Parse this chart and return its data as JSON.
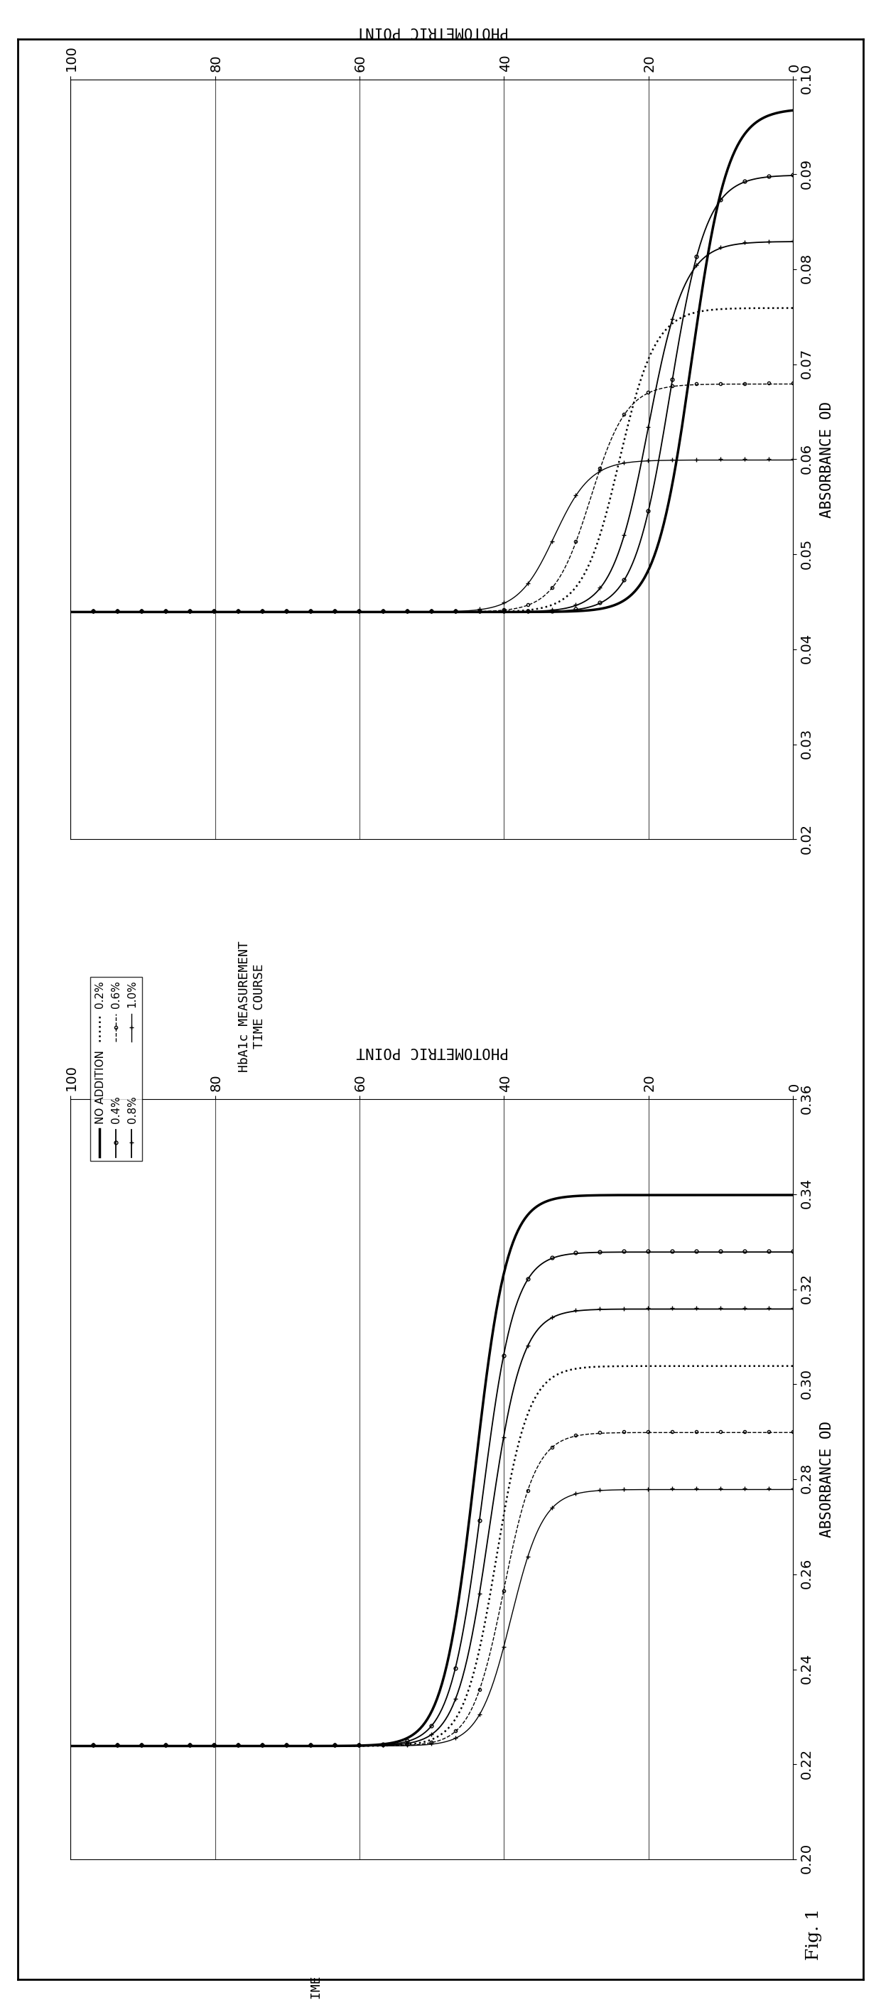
{
  "fig_label": "Fig. 1",
  "left_title": "Hb MEASUREMENT TIME\nCOURSE",
  "right_title": "HbA1c MEASUREMENT\nTIME COURSE",
  "left_ylabel": "ABSORBANCE OD",
  "right_ylabel": "ABSORBANCE OD",
  "left_xlabel": "PHOTOMETRIC POINT",
  "right_xlabel": "PHOTOMETRIC POINT",
  "left_xlim": [
    0.2,
    0.36
  ],
  "right_xlim": [
    0.02,
    0.1
  ],
  "left_ylim": [
    0,
    100
  ],
  "right_ylim": [
    0,
    100
  ],
  "left_xticks": [
    0.2,
    0.22,
    0.24,
    0.26,
    0.28,
    0.3,
    0.32,
    0.34,
    0.36
  ],
  "right_xticks": [
    0.02,
    0.03,
    0.04,
    0.05,
    0.06,
    0.07,
    0.08,
    0.09,
    0.1
  ],
  "yticks": [
    0,
    20,
    40,
    60,
    80,
    100
  ],
  "hb_transitions": [
    44,
    43,
    42,
    41,
    40,
    39
  ],
  "hb_plateaus": [
    0.34,
    0.328,
    0.316,
    0.304,
    0.29,
    0.278
  ],
  "hb_baselines": [
    0.224,
    0.224,
    0.224,
    0.224,
    0.224,
    0.224
  ],
  "hba1c_transitions": [
    14,
    17,
    20,
    24,
    28,
    33
  ],
  "hba1c_plateaus": [
    0.097,
    0.09,
    0.083,
    0.076,
    0.068,
    0.06
  ],
  "hba1c_baselines": [
    0.044,
    0.044,
    0.044,
    0.044,
    0.044,
    0.044
  ],
  "styles": [
    {
      "linestyle": "-",
      "marker": "None",
      "lw": 2.5,
      "ms": 0,
      "label": "NO ADDITION"
    },
    {
      "linestyle": "-",
      "marker": "o",
      "lw": 1.3,
      "ms": 3.5,
      "label": "0.4%"
    },
    {
      "linestyle": "-",
      "marker": "+",
      "lw": 1.3,
      "ms": 5,
      "label": "0.8%"
    },
    {
      "linestyle": ":",
      "marker": "None",
      "lw": 1.8,
      "ms": 0,
      "label": "0.2%"
    },
    {
      "linestyle": "--",
      "marker": "o",
      "lw": 1.0,
      "ms": 3,
      "label": "0.6%"
    },
    {
      "linestyle": "-",
      "marker": "+",
      "lw": 1.0,
      "ms": 4,
      "label": "1.0%"
    }
  ],
  "legend_col1_labels": [
    "NO ADDITION",
    "0.4%",
    "0.8%"
  ],
  "legend_col2_labels": [
    "0.2%",
    "0.6%",
    "1.0%"
  ]
}
